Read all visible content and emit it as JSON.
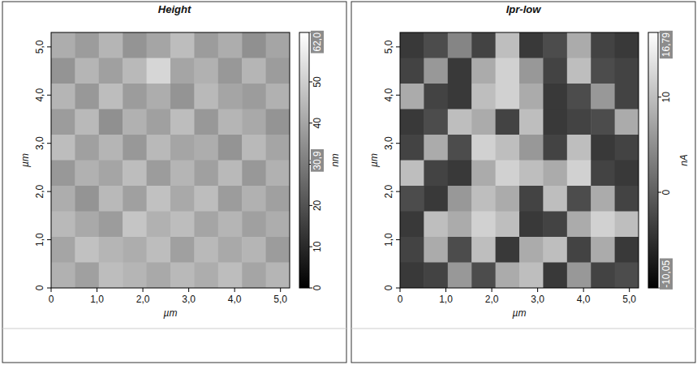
{
  "chart_data": [
    {
      "type": "heatmap",
      "title": "Height",
      "xlabel": "µm",
      "ylabel": "µm",
      "xlim": [
        0,
        5.2
      ],
      "ylim": [
        0,
        5.3
      ],
      "xticks": [
        0,
        {
          "value": 1,
          "label": "1,0"
        },
        {
          "value": 2,
          "label": "2,0"
        },
        {
          "value": 3,
          "label": "3,0"
        },
        {
          "value": 4,
          "label": "4,0"
        },
        {
          "value": 5,
          "label": "5,0"
        }
      ],
      "yticks": [
        0,
        {
          "value": 1,
          "label": "1,0"
        },
        {
          "value": 2,
          "label": "2,0"
        },
        {
          "value": 3,
          "label": "3,0"
        },
        {
          "value": 4,
          "label": "4,0"
        },
        {
          "value": 5,
          "label": "5,0"
        }
      ],
      "cells": [
        [
          42,
          38,
          44,
          36,
          40,
          46,
          38,
          42,
          35,
          40
        ],
        [
          36,
          44,
          39,
          45,
          52,
          40,
          43,
          37,
          44,
          38
        ],
        [
          44,
          37,
          46,
          38,
          42,
          36,
          45,
          40,
          38,
          43
        ],
        [
          38,
          45,
          35,
          43,
          39,
          46,
          37,
          44,
          41,
          36
        ],
        [
          46,
          39,
          44,
          37,
          45,
          40,
          42,
          36,
          45,
          40
        ],
        [
          37,
          43,
          40,
          46,
          38,
          44,
          39,
          45,
          37,
          43
        ],
        [
          42,
          36,
          45,
          39,
          47,
          41,
          46,
          38,
          43,
          39
        ],
        [
          45,
          41,
          38,
          48,
          43,
          46,
          40,
          44,
          39,
          42
        ],
        [
          40,
          47,
          44,
          42,
          46,
          39,
          45,
          41,
          44,
          38
        ],
        [
          43,
          39,
          46,
          44,
          41,
          45,
          42,
          46,
          40,
          44
        ]
      ],
      "colorbar": {
        "label": "nm",
        "range": [
          0,
          62
        ],
        "ticks": [
          0,
          10,
          20,
          30,
          40,
          50
        ],
        "markers": [
          {
            "value": 62,
            "label": "62,0"
          },
          {
            "value": 30.9,
            "label": "30,9"
          }
        ]
      }
    },
    {
      "type": "heatmap",
      "title": "Ipr-low",
      "xlabel": "µm",
      "ylabel": "µm",
      "xlim": [
        0,
        5.2
      ],
      "ylim": [
        0,
        5.3
      ],
      "xticks": [
        0,
        {
          "value": 1,
          "label": "1,0"
        },
        {
          "value": 2,
          "label": "2,0"
        },
        {
          "value": 3,
          "label": "3,0"
        },
        {
          "value": 4,
          "label": "4,0"
        },
        {
          "value": 5,
          "label": "5,0"
        }
      ],
      "yticks": [
        0,
        {
          "value": 1,
          "label": "1,0"
        },
        {
          "value": 2,
          "label": "2,0"
        },
        {
          "value": 3,
          "label": "3,0"
        },
        {
          "value": 4,
          "label": "4,0"
        },
        {
          "value": 5,
          "label": "5,0"
        }
      ],
      "cells": [
        [
          -4,
          -2,
          4,
          -3,
          10,
          -4,
          -2,
          8,
          -3,
          -4
        ],
        [
          -3,
          6,
          -4,
          8,
          12,
          6,
          -3,
          10,
          -2,
          -3
        ],
        [
          8,
          -3,
          -4,
          10,
          12,
          8,
          -4,
          -2,
          6,
          -3
        ],
        [
          -4,
          -2,
          10,
          8,
          -3,
          10,
          -4,
          -3,
          -2,
          8
        ],
        [
          -3,
          8,
          -2,
          12,
          10,
          6,
          -3,
          10,
          -4,
          -3
        ],
        [
          10,
          -3,
          -4,
          8,
          12,
          10,
          8,
          12,
          -3,
          -4
        ],
        [
          -2,
          -4,
          6,
          10,
          8,
          -3,
          10,
          -2,
          8,
          -3
        ],
        [
          -4,
          10,
          8,
          12,
          10,
          -4,
          -3,
          8,
          12,
          10
        ],
        [
          -3,
          8,
          -2,
          10,
          -4,
          8,
          10,
          -3,
          8,
          -4
        ],
        [
          -4,
          -3,
          6,
          -2,
          8,
          10,
          -4,
          6,
          -3,
          -2
        ]
      ],
      "colorbar": {
        "label": "nA",
        "range": [
          -10.05,
          16.79
        ],
        "ticks": [
          0,
          10
        ],
        "markers": [
          {
            "value": 16.79,
            "label": "16,79"
          },
          {
            "value": -10.05,
            "label": "-10,05"
          }
        ]
      }
    }
  ]
}
